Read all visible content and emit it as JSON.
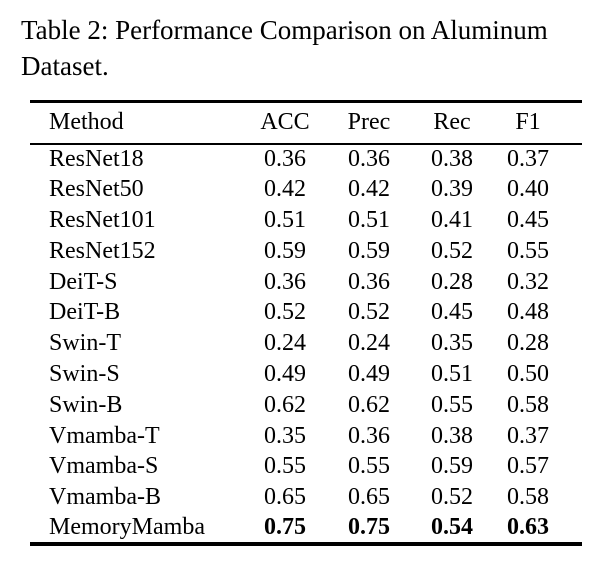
{
  "caption": {
    "line1": "Table 2: Performance Comparison on Aluminum",
    "line2": "Dataset."
  },
  "table": {
    "columns": [
      "Method",
      "ACC",
      "Prec",
      "Rec",
      "F1"
    ],
    "rows": [
      {
        "method": "ResNet18",
        "acc": "0.36",
        "prec": "0.36",
        "rec": "0.38",
        "f1": "0.37",
        "bold": false
      },
      {
        "method": "ResNet50",
        "acc": "0.42",
        "prec": "0.42",
        "rec": "0.39",
        "f1": "0.40",
        "bold": false
      },
      {
        "method": "ResNet101",
        "acc": "0.51",
        "prec": "0.51",
        "rec": "0.41",
        "f1": "0.45",
        "bold": false
      },
      {
        "method": "ResNet152",
        "acc": "0.59",
        "prec": "0.59",
        "rec": "0.52",
        "f1": "0.55",
        "bold": false
      },
      {
        "method": "DeiT-S",
        "acc": "0.36",
        "prec": "0.36",
        "rec": "0.28",
        "f1": "0.32",
        "bold": false
      },
      {
        "method": "DeiT-B",
        "acc": "0.52",
        "prec": "0.52",
        "rec": "0.45",
        "f1": "0.48",
        "bold": false
      },
      {
        "method": "Swin-T",
        "acc": "0.24",
        "prec": "0.24",
        "rec": "0.35",
        "f1": "0.28",
        "bold": false
      },
      {
        "method": "Swin-S",
        "acc": "0.49",
        "prec": "0.49",
        "rec": "0.51",
        "f1": "0.50",
        "bold": false
      },
      {
        "method": "Swin-B",
        "acc": "0.62",
        "prec": "0.62",
        "rec": "0.55",
        "f1": "0.58",
        "bold": false
      },
      {
        "method": "Vmamba-T",
        "acc": "0.35",
        "prec": "0.36",
        "rec": "0.38",
        "f1": "0.37",
        "bold": false
      },
      {
        "method": "Vmamba-S",
        "acc": "0.55",
        "prec": "0.55",
        "rec": "0.59",
        "f1": "0.57",
        "bold": false
      },
      {
        "method": "Vmamba-B",
        "acc": "0.65",
        "prec": "0.65",
        "rec": "0.52",
        "f1": "0.58",
        "bold": false
      },
      {
        "method": "MemoryMamba",
        "acc": "0.75",
        "prec": "0.75",
        "rec": "0.54",
        "f1": "0.63",
        "bold": true
      }
    ]
  },
  "colors": {
    "text": "#000000",
    "background": "#ffffff",
    "rule": "#000000"
  }
}
